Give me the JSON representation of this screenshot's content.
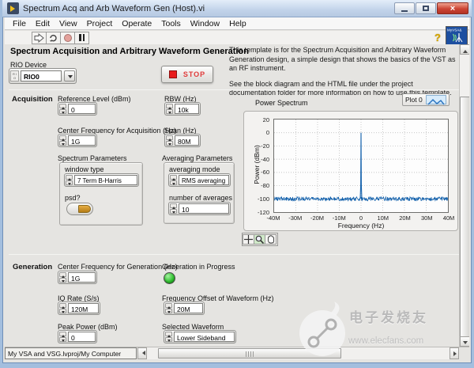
{
  "window": {
    "title": "Spectrum Acq and Arb Waveform Gen (Host).vi"
  },
  "menu": {
    "items": [
      "File",
      "Edit",
      "View",
      "Project",
      "Operate",
      "Tools",
      "Window",
      "Help"
    ]
  },
  "toolbar": {
    "help_glyph": "?",
    "vi_icon_text": "MyVSA&"
  },
  "header": {
    "title": "Spectrum Acquisition and Arbitrary Waveform Generation",
    "rio_device": {
      "label": "RIO Device",
      "value": "RIO0",
      "io_icon_text": "R I O"
    },
    "stop_label": "STOP",
    "description": [
      "This template is for the Spectrum Acquisition and Arbitrary Waveform Generation design, a simple design that shows the basics of the VST as an RF instrument.",
      "See the block diagram and the HTML file under the project documentation folder for more information on how to use this template."
    ]
  },
  "acquisition": {
    "section_label": "Acquisition",
    "reference_level": {
      "label": "Reference Level (dBm)",
      "value": "0"
    },
    "rbw": {
      "label": "RBW (Hz)",
      "value": "10k"
    },
    "center_frequency": {
      "label": "Center Frequency for Acquisition (Hz)",
      "value": "1G"
    },
    "span": {
      "label": "Span (Hz)",
      "value": "80M"
    },
    "spectrum_parameters": {
      "label": "Spectrum Parameters",
      "window_type": {
        "label": "window type",
        "value": "7 Term B-Harris"
      },
      "psd": {
        "label": "psd?",
        "state": "off"
      }
    },
    "averaging_parameters": {
      "label": "Averaging Parameters",
      "averaging_mode": {
        "label": "averaging mode",
        "value": "RMS averaging"
      },
      "number_of_averages": {
        "label": "number of averages",
        "value": "10"
      }
    }
  },
  "graph": {
    "label": "Power Spectrum",
    "legend": "Plot 0"
  },
  "chart_data": {
    "type": "line",
    "title": "Power Spectrum",
    "xlabel": "Frequency (Hz)",
    "ylabel": "Power (dBm)",
    "xlim_hz": [
      -40000000,
      40000000
    ],
    "ylim_dbm": [
      -120,
      20
    ],
    "x_tick_labels": [
      "-40M",
      "-30M",
      "-20M",
      "-10M",
      "0",
      "10M",
      "20M",
      "30M",
      "40M"
    ],
    "y_tick_labels": [
      "20",
      "0",
      "-20",
      "-40",
      "-60",
      "-80",
      "-100",
      "-120"
    ],
    "grid": true,
    "legend_position": "top-right",
    "series": [
      {
        "name": "Plot 0",
        "color": "#1663ad",
        "description": "broadband noise floor with a single carrier spike",
        "noise_floor_dbm": -100,
        "noise_peak_to_peak_db": 6,
        "peak": {
          "x_hz": 0,
          "y_dbm": 0
        }
      }
    ]
  },
  "generation": {
    "section_label": "Generation",
    "center_frequency": {
      "label": "Center Frequency for Generation (Hz)",
      "value": "1G"
    },
    "in_progress": {
      "label": "Generation in Progress",
      "state": "on",
      "color": "#35c335"
    },
    "iq_rate": {
      "label": "IQ Rate (S/s)",
      "value": "120M"
    },
    "frequency_offset": {
      "label": "Frequency Offset of Waveform (Hz)",
      "value": "20M"
    },
    "peak_power": {
      "label": "Peak Power (dBm)",
      "value": "0"
    },
    "selected_waveform": {
      "label": "Selected Waveform",
      "value": "Lower Sideband"
    }
  },
  "statusbar": {
    "project_path": "My VSA and VSG.lvproj/My Computer"
  },
  "watermark": {
    "name": "电子发烧友",
    "url": "www.elecfans.com"
  }
}
